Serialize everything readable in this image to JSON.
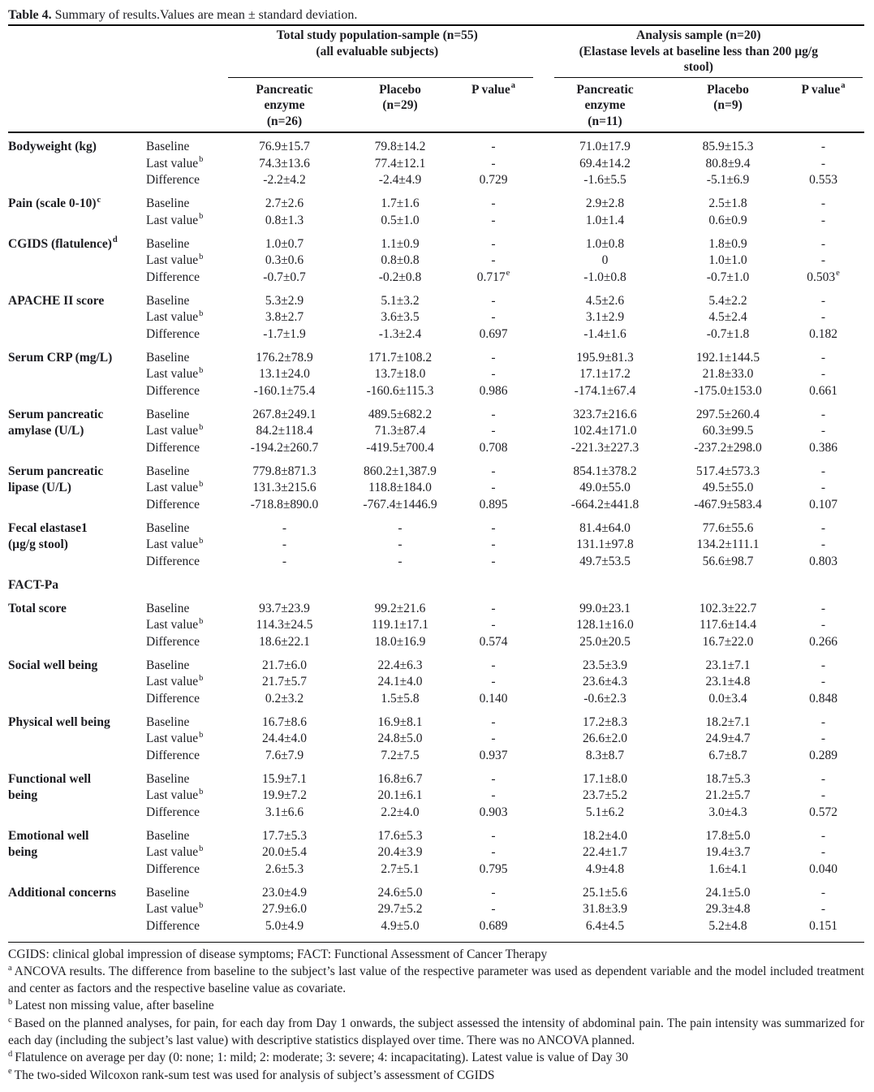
{
  "colors": {
    "text_color": "#1d1d22",
    "rule_color": "#0a0a0a"
  },
  "title": {
    "label": "Table 4.",
    "caption": "Summary of results.Values are mean ± standard deviation."
  },
  "header": {
    "groups": [
      {
        "lines": [
          "Total study population-sample (n=55)",
          "(all evaluable subjects)"
        ]
      },
      {
        "lines": [
          "Analysis sample (n=20)",
          "(Elastase levels at baseline less than 200 µg/g",
          "stool)"
        ]
      }
    ],
    "columns": [
      {
        "lines": [
          "Pancreatic",
          "enzyme",
          "(n=26)"
        ],
        "sup": ""
      },
      {
        "lines": [
          "Placebo",
          "(n=29)"
        ],
        "sup": ""
      },
      {
        "lines": [
          "P value"
        ],
        "sup": "a"
      },
      {
        "lines": [
          "Pancreatic",
          "enzyme",
          "(n=11)"
        ],
        "sup": ""
      },
      {
        "lines": [
          "Placebo",
          "(n=9)"
        ],
        "sup": ""
      },
      {
        "lines": [
          "P value"
        ],
        "sup": "a"
      }
    ]
  },
  "rows": [
    {
      "param": {
        "lines": [
          "Bodyweight (kg)"
        ],
        "sup": ""
      },
      "sub": [
        {
          "visit": "Baseline",
          "sup": "",
          "cells": [
            "76.9±15.7",
            "79.8±14.2",
            "-",
            "71.0±17.9",
            "85.9±15.3",
            "-"
          ]
        },
        {
          "visit": "Last value",
          "sup": "b",
          "cells": [
            "74.3±13.6",
            "77.4±12.1",
            "-",
            "69.4±14.2",
            "80.8±9.4",
            "-"
          ]
        },
        {
          "visit": "Difference",
          "sup": "",
          "cells": [
            "-2.2±4.2",
            "-2.4±4.9",
            "0.729",
            "-1.6±5.5",
            "-5.1±6.9",
            "0.553"
          ]
        }
      ]
    },
    {
      "param": {
        "lines": [
          "Pain (scale 0-10)"
        ],
        "sup": "c"
      },
      "sub": [
        {
          "visit": "Baseline",
          "sup": "",
          "cells": [
            "2.7±2.6",
            "1.7±1.6",
            "-",
            "2.9±2.8",
            "2.5±1.8",
            "-"
          ]
        },
        {
          "visit": "Last value",
          "sup": "b",
          "cells": [
            "0.8±1.3",
            "0.5±1.0",
            "-",
            "1.0±1.4",
            "0.6±0.9",
            "-"
          ]
        }
      ]
    },
    {
      "param": {
        "lines": [
          "CGIDS (flatulence)"
        ],
        "sup": "d"
      },
      "sub": [
        {
          "visit": "Baseline",
          "sup": "",
          "cells": [
            "1.0±0.7",
            "1.1±0.9",
            "-",
            "1.0±0.8",
            "1.8±0.9",
            "-"
          ]
        },
        {
          "visit": "Last value",
          "sup": "b",
          "cells": [
            "0.3±0.6",
            "0.8±0.8",
            "-",
            "0",
            "1.0±1.0",
            "-"
          ]
        },
        {
          "visit": "Difference",
          "sup": "",
          "cells": [
            "-0.7±0.7",
            "-0.2±0.8",
            {
              "v": "0.717",
              "sup": "e"
            },
            "-1.0±0.8",
            "-0.7±1.0",
            {
              "v": "0.503",
              "sup": "e"
            }
          ]
        }
      ]
    },
    {
      "param": {
        "lines": [
          "APACHE II score"
        ],
        "sup": ""
      },
      "sub": [
        {
          "visit": "Baseline",
          "sup": "",
          "cells": [
            "5.3±2.9",
            "5.1±3.2",
            "-",
            "4.5±2.6",
            "5.4±2.2",
            "-"
          ]
        },
        {
          "visit": "Last value",
          "sup": "b",
          "cells": [
            "3.8±2.7",
            "3.6±3.5",
            "-",
            "3.1±2.9",
            "4.5±2.4",
            "-"
          ]
        },
        {
          "visit": "Difference",
          "sup": "",
          "cells": [
            "-1.7±1.9",
            "-1.3±2.4",
            "0.697",
            "-1.4±1.6",
            "-0.7±1.8",
            "0.182"
          ]
        }
      ]
    },
    {
      "param": {
        "lines": [
          "Serum CRP (mg/L)"
        ],
        "sup": ""
      },
      "sub": [
        {
          "visit": "Baseline",
          "sup": "",
          "cells": [
            "176.2±78.9",
            "171.7±108.2",
            "-",
            "195.9±81.3",
            "192.1±144.5",
            "-"
          ]
        },
        {
          "visit": "Last value",
          "sup": "b",
          "cells": [
            "13.1±24.0",
            "13.7±18.0",
            "-",
            "17.1±17.2",
            "21.8±33.0",
            "-"
          ]
        },
        {
          "visit": "Difference",
          "sup": "",
          "cells": [
            "-160.1±75.4",
            "-160.6±115.3",
            "0.986",
            "-174.1±67.4",
            "-175.0±153.0",
            "0.661"
          ]
        }
      ]
    },
    {
      "param": {
        "lines": [
          "Serum pancreatic",
          "amylase (U/L)"
        ],
        "sup": ""
      },
      "sub": [
        {
          "visit": "Baseline",
          "sup": "",
          "cells": [
            "267.8±249.1",
            "489.5±682.2",
            "-",
            "323.7±216.6",
            "297.5±260.4",
            "-"
          ]
        },
        {
          "visit": "Last value",
          "sup": "b",
          "cells": [
            "84.2±118.4",
            "71.3±87.4",
            "-",
            "102.4±171.0",
            "60.3±99.5",
            "-"
          ]
        },
        {
          "visit": "Difference",
          "sup": "",
          "cells": [
            "-194.2±260.7",
            "-419.5±700.4",
            "0.708",
            "-221.3±227.3",
            "-237.2±298.0",
            "0.386"
          ]
        }
      ]
    },
    {
      "param": {
        "lines": [
          "Serum pancreatic",
          "lipase (U/L)"
        ],
        "sup": ""
      },
      "sub": [
        {
          "visit": "Baseline",
          "sup": "",
          "cells": [
            "779.8±871.3",
            "860.2±1,387.9",
            "-",
            "854.1±378.2",
            "517.4±573.3",
            "-"
          ]
        },
        {
          "visit": "Last value",
          "sup": "b",
          "cells": [
            "131.3±215.6",
            "118.8±184.0",
            "-",
            "49.0±55.0",
            "49.5±55.0",
            "-"
          ]
        },
        {
          "visit": "Difference",
          "sup": "",
          "cells": [
            "-718.8±890.0",
            "-767.4±1446.9",
            "0.895",
            "-664.2±441.8",
            "-467.9±583.4",
            "0.107"
          ]
        }
      ]
    },
    {
      "param": {
        "lines": [
          "Fecal elastase1",
          "(µg/g stool)"
        ],
        "sup": ""
      },
      "sub": [
        {
          "visit": "Baseline",
          "sup": "",
          "cells": [
            "-",
            "-",
            "-",
            "81.4±64.0",
            "77.6±55.6",
            "-"
          ]
        },
        {
          "visit": "Last value",
          "sup": "b",
          "cells": [
            "-",
            "-",
            "-",
            "131.1±97.8",
            "134.2±111.1",
            "-"
          ]
        },
        {
          "visit": "Difference",
          "sup": "",
          "cells": [
            "-",
            "-",
            "-",
            "49.7±53.5",
            "56.6±98.7",
            "0.803"
          ]
        }
      ]
    },
    {
      "param": {
        "lines": [
          "FACT-Pa"
        ],
        "sup": ""
      },
      "sub": []
    },
    {
      "param": {
        "lines": [
          "Total score"
        ],
        "sup": ""
      },
      "sub": [
        {
          "visit": "Baseline",
          "sup": "",
          "cells": [
            "93.7±23.9",
            "99.2±21.6",
            "-",
            "99.0±23.1",
            "102.3±22.7",
            "-"
          ]
        },
        {
          "visit": "Last value",
          "sup": "b",
          "cells": [
            "114.3±24.5",
            "119.1±17.1",
            "-",
            "128.1±16.0",
            "117.6±14.4",
            "-"
          ]
        },
        {
          "visit": "Difference",
          "sup": "",
          "cells": [
            "18.6±22.1",
            "18.0±16.9",
            "0.574",
            "25.0±20.5",
            "16.7±22.0",
            "0.266"
          ]
        }
      ]
    },
    {
      "param": {
        "lines": [
          "Social well being"
        ],
        "sup": ""
      },
      "sub": [
        {
          "visit": "Baseline",
          "sup": "",
          "cells": [
            "21.7±6.0",
            "22.4±6.3",
            "-",
            "23.5±3.9",
            "23.1±7.1",
            "-"
          ]
        },
        {
          "visit": "Last value",
          "sup": "b",
          "cells": [
            "21.7±5.7",
            "24.1±4.0",
            "-",
            "23.6±4.3",
            "23.1±4.8",
            "-"
          ]
        },
        {
          "visit": "Difference",
          "sup": "",
          "cells": [
            "0.2±3.2",
            "1.5±5.8",
            "0.140",
            "-0.6±2.3",
            "0.0±3.4",
            "0.848"
          ]
        }
      ]
    },
    {
      "param": {
        "lines": [
          "Physical well being"
        ],
        "sup": ""
      },
      "sub": [
        {
          "visit": "Baseline",
          "sup": "",
          "cells": [
            "16.7±8.6",
            "16.9±8.1",
            "-",
            "17.2±8.3",
            "18.2±7.1",
            "-"
          ]
        },
        {
          "visit": "Last value",
          "sup": "b",
          "cells": [
            "24.4±4.0",
            "24.8±5.0",
            "-",
            "26.6±2.0",
            "24.9±4.7",
            "-"
          ]
        },
        {
          "visit": "Difference",
          "sup": "",
          "cells": [
            "7.6±7.9",
            "7.2±7.5",
            "0.937",
            "8.3±8.7",
            "6.7±8.7",
            "0.289"
          ]
        }
      ]
    },
    {
      "param": {
        "lines": [
          "Functional well",
          "being"
        ],
        "sup": ""
      },
      "sub": [
        {
          "visit": "Baseline",
          "sup": "",
          "cells": [
            "15.9±7.1",
            "16.8±6.7",
            "-",
            "17.1±8.0",
            "18.7±5.3",
            "-"
          ]
        },
        {
          "visit": "Last value",
          "sup": "b",
          "cells": [
            "19.9±7.2",
            "20.1±6.1",
            "-",
            "23.7±5.2",
            "21.2±5.7",
            "-"
          ]
        },
        {
          "visit": "Difference",
          "sup": "",
          "cells": [
            "3.1±6.6",
            "2.2±4.0",
            "0.903",
            "5.1±6.2",
            "3.0±4.3",
            "0.572"
          ]
        }
      ]
    },
    {
      "param": {
        "lines": [
          "Emotional well",
          "being"
        ],
        "sup": ""
      },
      "sub": [
        {
          "visit": "Baseline",
          "sup": "",
          "cells": [
            "17.7±5.3",
            "17.6±5.3",
            "-",
            "18.2±4.0",
            "17.8±5.0",
            "-"
          ]
        },
        {
          "visit": "Last value",
          "sup": "b",
          "cells": [
            "20.0±5.4",
            "20.4±3.9",
            "-",
            "22.4±1.7",
            "19.4±3.7",
            "-"
          ]
        },
        {
          "visit": "Difference",
          "sup": "",
          "cells": [
            "2.6±5.3",
            "2.7±5.1",
            "0.795",
            "4.9±4.8",
            "1.6±4.1",
            "0.040"
          ]
        }
      ]
    },
    {
      "param": {
        "lines": [
          "Additional concerns"
        ],
        "sup": ""
      },
      "sub": [
        {
          "visit": "Baseline",
          "sup": "",
          "cells": [
            "23.0±4.9",
            "24.6±5.0",
            "-",
            "25.1±5.6",
            "24.1±5.0",
            "-"
          ]
        },
        {
          "visit": "Last value",
          "sup": "b",
          "cells": [
            "27.9±6.0",
            "29.7±5.2",
            "-",
            "31.8±3.9",
            "29.3±4.8",
            "-"
          ]
        },
        {
          "visit": "Difference",
          "sup": "",
          "cells": [
            "5.0±4.9",
            "4.9±5.0",
            "0.689",
            "6.4±4.5",
            "5.2±4.8",
            "0.151"
          ]
        }
      ]
    }
  ],
  "footnotes": [
    {
      "sup": "",
      "text": "CGIDS: clinical global impression of disease symptoms; FACT: Functional Assessment of Cancer Therapy"
    },
    {
      "sup": "a",
      "text": "ANCOVA results. The difference from baseline to the subject’s last value of the respective parameter was used as dependent variable and the model included treatment and center as factors and the respective baseline value as covariate."
    },
    {
      "sup": "b",
      "text": "Latest non missing value, after baseline"
    },
    {
      "sup": "c",
      "text": "Based on the planned analyses, for pain, for each day from Day 1 onwards, the subject assessed the intensity of abdominal pain. The pain intensity was summarized for each day (including the subject’s last value) with descriptive statistics displayed over time. There was no ANCOVA planned."
    },
    {
      "sup": "d",
      "text": "Flatulence on average per day (0: none; 1: mild; 2: moderate; 3: severe; 4: incapacitating). Latest value is value of Day 30"
    },
    {
      "sup": "e",
      "text": "The two-sided Wilcoxon rank-sum test was used for analysis of subject’s assessment of CGIDS"
    }
  ]
}
